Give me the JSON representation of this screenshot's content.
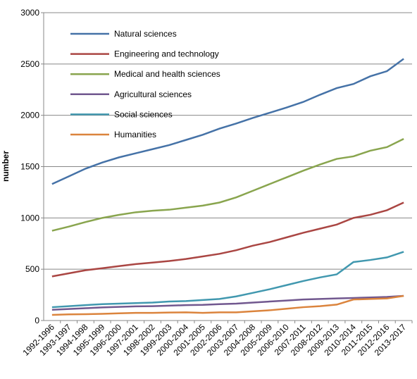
{
  "chart_data": {
    "type": "line",
    "y_label": "number",
    "categories": [
      "1992-1996",
      "1993-1997",
      "1994-1998",
      "1995-1999",
      "1996-2000",
      "1997-2001",
      "1998-2002",
      "1999-2003",
      "2000-2004",
      "2001-2005",
      "2002-2006",
      "2003-2007",
      "2004-2008",
      "2005-2009",
      "2006-2010",
      "2007-2011",
      "2008-2012",
      "2009-2013",
      "2010-2014",
      "2011-2015",
      "2012-2016",
      "2013-2017"
    ],
    "series": [
      {
        "name": "Natural sciences",
        "color": "#4572a7",
        "values": [
          1330,
          1405,
          1480,
          1540,
          1590,
          1630,
          1670,
          1710,
          1760,
          1810,
          1870,
          1920,
          1975,
          2025,
          2075,
          2130,
          2200,
          2265,
          2305,
          2380,
          2430,
          2550
        ]
      },
      {
        "name": "Engineering and technology",
        "color": "#aa4643",
        "values": [
          430,
          460,
          490,
          510,
          530,
          550,
          565,
          580,
          600,
          625,
          650,
          685,
          730,
          765,
          810,
          855,
          895,
          935,
          1000,
          1030,
          1075,
          1150
        ]
      },
      {
        "name": "Medical and health sciences",
        "color": "#89a54e",
        "values": [
          875,
          915,
          960,
          1000,
          1030,
          1055,
          1070,
          1080,
          1100,
          1120,
          1150,
          1200,
          1265,
          1330,
          1395,
          1460,
          1520,
          1575,
          1600,
          1655,
          1690,
          1770
        ]
      },
      {
        "name": "Agricultural sciences",
        "color": "#71588f",
        "values": [
          105,
          112,
          120,
          128,
          133,
          138,
          140,
          145,
          150,
          153,
          160,
          165,
          175,
          185,
          195,
          205,
          210,
          215,
          220,
          225,
          230,
          240
        ]
      },
      {
        "name": "Social sciences",
        "color": "#4198af",
        "values": [
          130,
          140,
          150,
          160,
          165,
          170,
          175,
          185,
          190,
          200,
          210,
          235,
          270,
          305,
          345,
          385,
          420,
          450,
          570,
          590,
          615,
          670
        ]
      },
      {
        "name": "Humanities",
        "color": "#db843d",
        "values": [
          55,
          60,
          62,
          65,
          70,
          75,
          75,
          78,
          80,
          75,
          80,
          80,
          90,
          100,
          115,
          130,
          140,
          155,
          205,
          210,
          215,
          240
        ]
      }
    ],
    "ylim": [
      0,
      3000
    ],
    "yticks": [
      0,
      500,
      1000,
      1500,
      2000,
      2500,
      3000
    ],
    "grid": true,
    "legend": "top-left"
  }
}
